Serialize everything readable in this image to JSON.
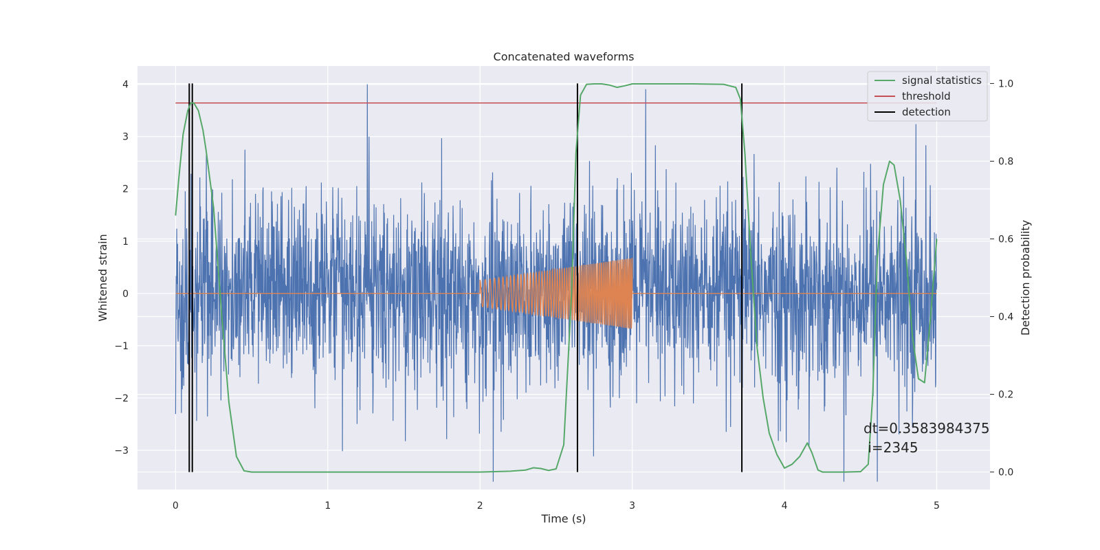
{
  "chart_data": {
    "type": "line",
    "title": "Concatenated waveforms",
    "xlabel": "Time (s)",
    "ylabel_left": "Whitened strain",
    "ylabel_right": "Detection probability",
    "xlim": [
      -0.25,
      5.35
    ],
    "ylim_left": [
      -3.75,
      4.35
    ],
    "ylim_right": [
      -0.045,
      1.045
    ],
    "x_ticks": [
      0,
      1,
      2,
      3,
      4,
      5
    ],
    "x_tick_labels": [
      "0",
      "1",
      "2",
      "3",
      "4",
      "5"
    ],
    "y_left_ticks": [
      -3,
      -2,
      -1,
      0,
      1,
      2,
      3,
      4
    ],
    "y_left_tick_labels": [
      "−3",
      "−2",
      "−1",
      "0",
      "1",
      "2",
      "3",
      "4"
    ],
    "y_right_ticks": [
      0.0,
      0.2,
      0.4,
      0.6,
      0.8,
      1.0
    ],
    "y_right_tick_labels": [
      "0.0",
      "0.2",
      "0.4",
      "0.6",
      "0.8",
      "1.0"
    ],
    "grid": true,
    "legend_position": "top-right",
    "noise": {
      "color": "#4c72b0",
      "x_range": [
        0,
        5
      ],
      "typical_amplitude": 1.0,
      "peak_max": 4.0,
      "peak_min": -3.6
    },
    "injected_signal": {
      "color": "#dd8452",
      "start": 2.0,
      "end": 3.0,
      "amplitude_start": 0.25,
      "amplitude_end": 0.68,
      "baseline": 0
    },
    "series": [
      {
        "name": "signal statistics",
        "axis": "right",
        "color": "#55a868",
        "x": [
          0.0,
          0.02,
          0.05,
          0.08,
          0.1,
          0.12,
          0.15,
          0.18,
          0.2,
          0.25,
          0.3,
          0.35,
          0.4,
          0.45,
          0.5,
          0.8,
          1.2,
          1.6,
          2.0,
          2.2,
          2.3,
          2.35,
          2.4,
          2.45,
          2.5,
          2.55,
          2.6,
          2.63,
          2.66,
          2.7,
          2.75,
          2.8,
          2.85,
          2.9,
          2.95,
          3.0,
          3.05,
          3.2,
          3.4,
          3.6,
          3.68,
          3.71,
          3.74,
          3.78,
          3.82,
          3.86,
          3.9,
          3.95,
          4.0,
          4.05,
          4.1,
          4.15,
          4.18,
          4.22,
          4.25,
          4.3,
          4.4,
          4.5,
          4.55,
          4.58,
          4.61,
          4.65,
          4.69,
          4.72,
          4.76,
          4.8,
          4.84,
          4.88,
          4.92,
          4.96,
          5.0
        ],
        "y": [
          0.66,
          0.75,
          0.87,
          0.93,
          0.95,
          0.95,
          0.93,
          0.88,
          0.83,
          0.68,
          0.42,
          0.18,
          0.04,
          0.003,
          0.0,
          0.0,
          0.0,
          0.0,
          0.0,
          0.002,
          0.005,
          0.011,
          0.009,
          0.004,
          0.008,
          0.07,
          0.45,
          0.82,
          0.97,
          0.998,
          0.999,
          0.999,
          0.996,
          0.99,
          0.994,
          0.999,
          0.999,
          0.999,
          0.999,
          0.998,
          0.99,
          0.96,
          0.82,
          0.55,
          0.32,
          0.19,
          0.1,
          0.045,
          0.01,
          0.02,
          0.04,
          0.075,
          0.05,
          0.005,
          0.0,
          0.0,
          0.0,
          0.001,
          0.02,
          0.2,
          0.55,
          0.74,
          0.8,
          0.79,
          0.7,
          0.55,
          0.35,
          0.24,
          0.23,
          0.4,
          0.6
        ]
      },
      {
        "name": "threshold",
        "axis": "right",
        "color": "#c44e52",
        "x": [
          0,
          5
        ],
        "y": [
          0.95,
          0.95
        ]
      },
      {
        "name": "detection",
        "axis": "right",
        "color": "#000000",
        "vlines_x": [
          0.09,
          0.11,
          2.64,
          3.72
        ],
        "y_span": [
          0.0,
          1.0
        ]
      }
    ],
    "annotation": {
      "line1": "dt=0.3583984375",
      "line2": " i=2345",
      "x": 4.5,
      "y_right": 0.11
    }
  }
}
